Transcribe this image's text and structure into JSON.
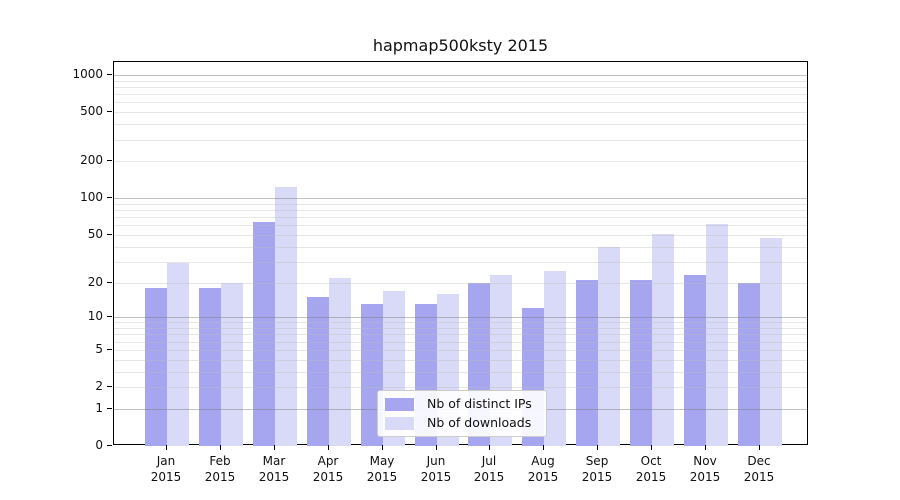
{
  "figure": {
    "background": "#ffffff"
  },
  "chart_data": {
    "type": "bar",
    "title": "hapmap500ksty 2015",
    "months": [
      "Jan",
      "Feb",
      "Mar",
      "Apr",
      "May",
      "Jun",
      "Jul",
      "Aug",
      "Sep",
      "Oct",
      "Nov",
      "Dec"
    ],
    "year": "2015",
    "series": [
      {
        "name": "Nb of distinct IPs",
        "color": "#a6a6f0",
        "values": [
          18,
          18,
          64,
          15,
          13,
          13,
          20,
          12,
          21,
          21,
          23,
          20
        ]
      },
      {
        "name": "Nb of downloads",
        "color": "#d9d9f8",
        "values": [
          29,
          20,
          123,
          22,
          17,
          16,
          23,
          25,
          40,
          51,
          61,
          47
        ]
      }
    ],
    "y_ticks": [
      1000,
      500,
      200,
      100,
      50,
      20,
      10,
      5,
      2,
      1,
      0
    ],
    "y_major_gridlines": [
      1,
      10,
      100,
      1000
    ],
    "y_scale": "log10(1+value)",
    "ylim": [
      0,
      1300
    ],
    "grid": "horizontal major and minor gridlines",
    "legend": {
      "position": "inside lower-center",
      "entries": [
        "Nb of distinct IPs",
        "Nb of downloads"
      ]
    },
    "colors": {
      "spine": "#000000",
      "major_grid": "#c3c3c3",
      "minor_grid": "#e9e9e9",
      "title_text": "#111111",
      "tick_text": "#111111"
    }
  }
}
